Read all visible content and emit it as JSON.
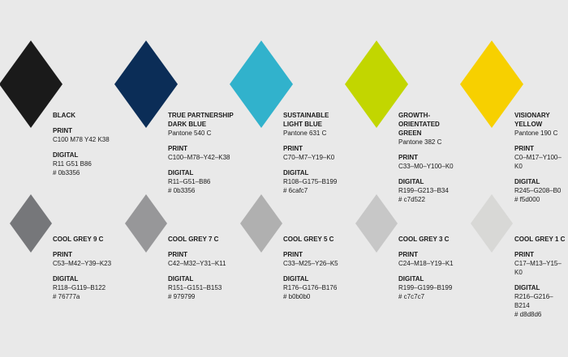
{
  "primary": [
    {
      "name": [
        "BLACK"
      ],
      "pantone": "",
      "print": "C100  M78  Y42  K38",
      "digital_rgb": "R11  G51  B86",
      "digital_hex": "# 0b3356",
      "color": "#1a1a1a"
    },
    {
      "name": [
        "TRUE PARTNERSHIP",
        "DARK BLUE"
      ],
      "pantone": "Pantone 540 C",
      "print": "C100–M78–Y42–K38",
      "digital_rgb": "R11–G51–B86",
      "digital_hex": "# 0b3356",
      "color": "#0b2d57"
    },
    {
      "name": [
        "SUSTAINABLE",
        "LIGHT BLUE"
      ],
      "pantone": "Pantone 631 C",
      "print": "C70–M7–Y19–K0",
      "digital_rgb": "R108–G175–B199",
      "digital_hex": "# 6cafc7",
      "color": "#31b2cc"
    },
    {
      "name": [
        "GROWTH-",
        "ORIENTATED",
        "GREEN"
      ],
      "pantone": "Pantone 382 C",
      "print": "C33–M0–Y100–K0",
      "digital_rgb": "R199–G213–B34",
      "digital_hex": "# c7d522",
      "color": "#c2d600"
    },
    {
      "name": [
        "VISIONARY",
        "YELLOW"
      ],
      "pantone": "Pantone 190 C",
      "print": "C0–M17–Y100–K0",
      "digital_rgb": "R245–G208–B0",
      "digital_hex": "# f5d000",
      "color": "#f7d000"
    }
  ],
  "greys": [
    {
      "name": [
        "COOL GREY 9 C"
      ],
      "print": "C53–M42–Y39–K23",
      "digital_rgb": "R118–G119–B122",
      "digital_hex": "# 76777a",
      "color": "#76777a"
    },
    {
      "name": [
        "COOL GREY 7 C"
      ],
      "print": "C42–M32–Y31–K11",
      "digital_rgb": "R151–G151–B153",
      "digital_hex": "# 979799",
      "color": "#979799"
    },
    {
      "name": [
        "COOL GREY 5 C"
      ],
      "print": "C33–M25–Y26–K5",
      "digital_rgb": "R176–G176–B176",
      "digital_hex": "# b0b0b0",
      "color": "#b0b0b0"
    },
    {
      "name": [
        "COOL GREY 3 C"
      ],
      "print": "C24–M18–Y19–K1",
      "digital_rgb": "R199–G199–B199",
      "digital_hex": "# c7c7c7",
      "color": "#c7c7c7"
    },
    {
      "name": [
        "COOL GREY 1 C"
      ],
      "print": "C17–M13–Y15–K0",
      "digital_rgb": "R216–G216–B214",
      "digital_hex": "# d8d8d6",
      "color": "#d8d8d6"
    }
  ],
  "labels": {
    "print": "PRINT",
    "digital": "DIGITAL"
  }
}
